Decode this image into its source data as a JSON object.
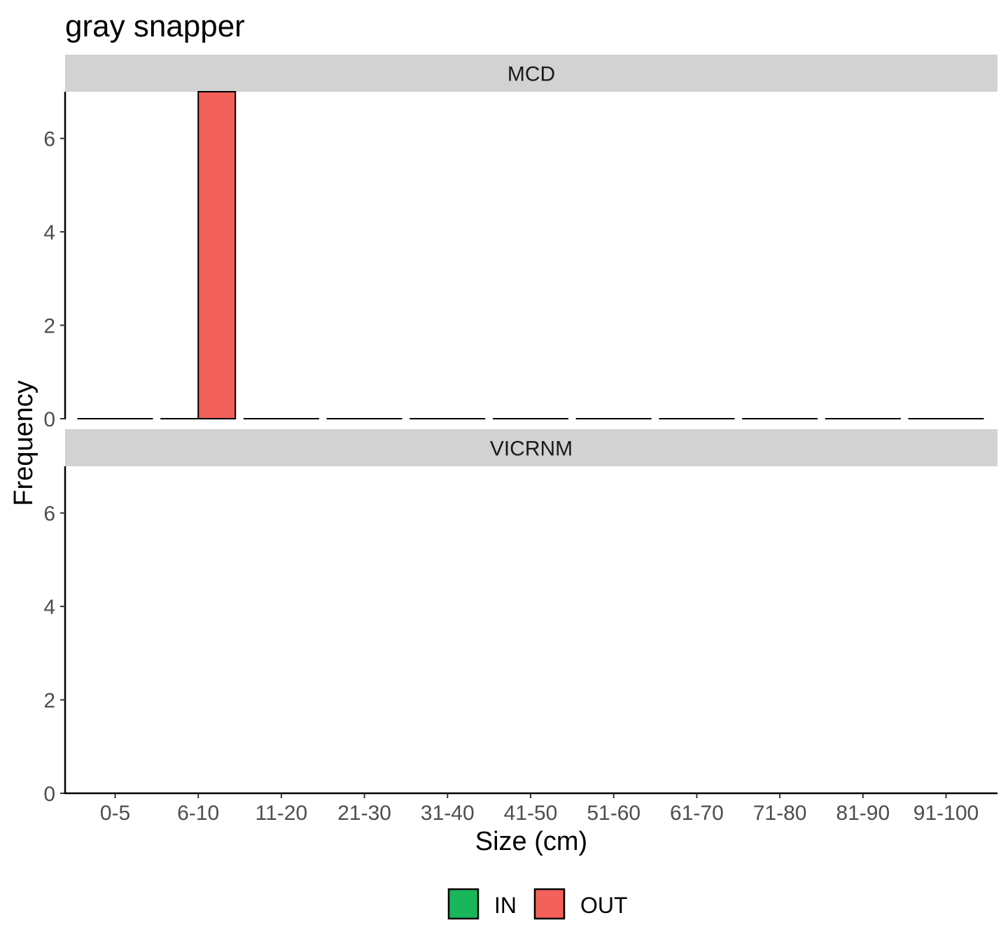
{
  "chart_data": {
    "type": "bar",
    "title": "gray snapper",
    "xlabel": "Size (cm)",
    "ylabel": "Frequency",
    "categories": [
      "0-5",
      "6-10",
      "11-20",
      "21-30",
      "31-40",
      "41-50",
      "51-60",
      "61-70",
      "71-80",
      "81-90",
      "91-100"
    ],
    "ylim": [
      0,
      7
    ],
    "yticks": [
      0,
      2,
      4,
      6
    ],
    "grid": false,
    "legend_position": "bottom",
    "series": [
      {
        "name": "IN",
        "color": "#17b75a"
      },
      {
        "name": "OUT",
        "color": "#f4605a"
      }
    ],
    "facets": [
      {
        "label": "MCD",
        "values": {
          "IN": [
            0,
            0,
            0,
            0,
            0,
            0,
            0,
            0,
            0,
            0,
            0
          ],
          "OUT": [
            0,
            7,
            0,
            0,
            0,
            0,
            0,
            0,
            0,
            0,
            0
          ]
        }
      },
      {
        "label": "VICRNM",
        "values": {
          "IN": [
            0,
            0,
            0,
            0,
            0,
            0,
            0,
            0,
            0,
            0,
            0
          ],
          "OUT": [
            0,
            0,
            0,
            0,
            0,
            0,
            0,
            0,
            0,
            0,
            0
          ]
        }
      }
    ]
  }
}
